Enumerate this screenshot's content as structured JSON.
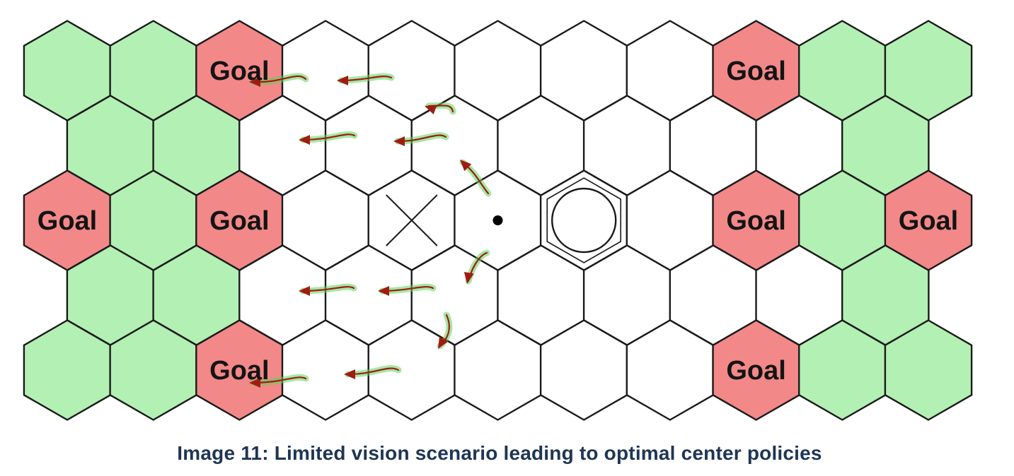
{
  "colors": {
    "field": "#b3f0b3",
    "goal": "#f28888",
    "empty": "#ffffff",
    "stroke": "#1a1a1a",
    "arrow": "#a01c12",
    "arrow_glow": "#5ad65a",
    "caption": "#1f3554"
  },
  "grid": {
    "rows": [
      [
        "field",
        "field",
        "goal",
        "empty",
        "empty",
        "empty",
        "empty",
        "empty",
        "goal",
        "field",
        "field"
      ],
      [
        "field",
        "field",
        "empty",
        "empty",
        "empty",
        "empty",
        "empty",
        "empty",
        "empty",
        "field",
        "field"
      ],
      [
        "goal",
        "field",
        "goal",
        "empty",
        "cross",
        "dot",
        "circle",
        "empty",
        "goal",
        "field",
        "goal"
      ],
      [
        "field",
        "field",
        "empty",
        "empty",
        "empty",
        "empty",
        "empty",
        "empty",
        "empty",
        "field",
        "field"
      ],
      [
        "field",
        "field",
        "goal",
        "empty",
        "empty",
        "empty",
        "empty",
        "empty",
        "goal",
        "field",
        "field"
      ]
    ]
  },
  "goal_label": "Goal",
  "markers": {
    "cross": "cross-marker",
    "dot": "dot-marker",
    "circle": "circle-marker"
  },
  "arrows": [
    {
      "id": "arrow-1",
      "direction": "left"
    },
    {
      "id": "arrow-2",
      "direction": "left"
    },
    {
      "id": "arrow-3",
      "direction": "up-left"
    },
    {
      "id": "arrow-4",
      "direction": "left"
    },
    {
      "id": "arrow-5",
      "direction": "left"
    },
    {
      "id": "arrow-6",
      "direction": "up-left"
    },
    {
      "id": "arrow-7",
      "direction": "down-left"
    },
    {
      "id": "arrow-8",
      "direction": "left"
    },
    {
      "id": "arrow-9",
      "direction": "left"
    },
    {
      "id": "arrow-10",
      "direction": "down"
    },
    {
      "id": "arrow-11",
      "direction": "left"
    },
    {
      "id": "arrow-12",
      "direction": "left"
    }
  ],
  "caption": "Image 11: Limited vision scenario leading to optimal center policies"
}
